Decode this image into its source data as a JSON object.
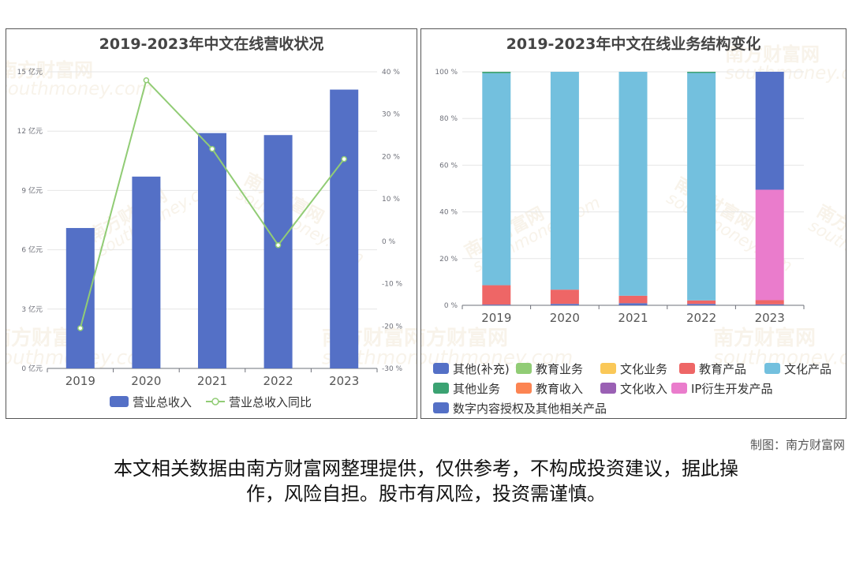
{
  "watermark": {
    "brand": "南方财富网",
    "site": "southmoney.com"
  },
  "charts": [
    {
      "title": "2019-2023年中文在线营收状况",
      "legend": [
        "营业总收入",
        "营业总收入同比"
      ],
      "colors": {
        "bar": "#5470c6",
        "line": "#91cc75"
      }
    },
    {
      "title": "2019-2023年中文在线业务结构变化",
      "legend": [
        "其他(补充)",
        "教育业务",
        "文化业务",
        "教育产品",
        "文化产品",
        "其他业务",
        "教育收入",
        "文化收入",
        "IP衍生开发产品",
        "数字内容授权及其他相关产品"
      ],
      "colors": [
        "#5470c6",
        "#91cc75",
        "#fac858",
        "#ee6666",
        "#73c0de",
        "#3ba272",
        "#fc8452",
        "#9a60b4",
        "#ea7ccc",
        "#5470c6"
      ]
    }
  ],
  "chart_data": [
    {
      "type": "bar",
      "categories": [
        "2019",
        "2020",
        "2021",
        "2022",
        "2023"
      ],
      "series": [
        {
          "name": "营业总收入",
          "type": "bar",
          "axis": "left",
          "values": [
            7.1,
            9.7,
            11.9,
            11.8,
            14.1
          ]
        },
        {
          "name": "营业总收入同比",
          "type": "line",
          "axis": "right",
          "values": [
            -20.5,
            38.0,
            21.8,
            -0.9,
            19.4
          ]
        }
      ],
      "y_left": {
        "min": 0,
        "max": 15,
        "ticks": [
          0,
          3,
          6,
          9,
          12,
          15
        ],
        "tick_labels": [
          "0 亿元",
          "3 亿元",
          "6 亿元",
          "9 亿元",
          "12 亿元",
          "15 亿元"
        ]
      },
      "y_right": {
        "min": -30,
        "max": 40,
        "ticks": [
          -30,
          -20,
          -10,
          0,
          10,
          20,
          30,
          40
        ],
        "tick_labels": [
          "-30 %",
          "-20 %",
          "-10 %",
          "0 %",
          "10 %",
          "20 %",
          "30 %",
          "40 %"
        ]
      },
      "grid": true,
      "legend_position": "bottom"
    },
    {
      "type": "bar",
      "stacked": true,
      "categories": [
        "2019",
        "2020",
        "2021",
        "2022",
        "2023"
      ],
      "series": [
        {
          "name": "其他(补充)",
          "values": [
            0.3,
            0.6,
            0.9,
            0.6,
            0.4
          ]
        },
        {
          "name": "教育业务",
          "values": [
            0,
            0,
            0,
            0,
            0
          ]
        },
        {
          "name": "文化业务",
          "values": [
            0,
            0,
            0,
            0,
            0
          ]
        },
        {
          "name": "教育产品",
          "values": [
            8.3,
            6.1,
            3.2,
            1.5,
            1.8
          ]
        },
        {
          "name": "文化产品",
          "values": [
            90.8,
            93.3,
            95.9,
            97.4,
            0
          ]
        },
        {
          "name": "其他业务",
          "values": [
            0.6,
            0,
            0,
            0.5,
            0
          ]
        },
        {
          "name": "教育收入",
          "values": [
            0,
            0,
            0,
            0,
            0
          ]
        },
        {
          "name": "文化收入",
          "values": [
            0,
            0,
            0,
            0,
            0
          ]
        },
        {
          "name": "IP衍生开发产品",
          "values": [
            0,
            0,
            0,
            0,
            47.3
          ]
        },
        {
          "name": "数字内容授权及其他相关产品",
          "values": [
            0,
            0,
            0,
            0,
            50.5
          ]
        }
      ],
      "y": {
        "min": 0,
        "max": 100,
        "ticks": [
          0,
          20,
          40,
          60,
          80,
          100
        ],
        "tick_labels": [
          "0 %",
          "20 %",
          "40 %",
          "60 %",
          "80 %",
          "100 %"
        ]
      },
      "grid": true,
      "legend_position": "bottom"
    }
  ],
  "credit": "制图：南方财富网",
  "disclaimer_lines": [
    "本文相关数据由南方财富网整理提供，仅供参考，不构成投资建议，据此操",
    "作，风险自担。股市有风险，投资需谨慎。"
  ]
}
